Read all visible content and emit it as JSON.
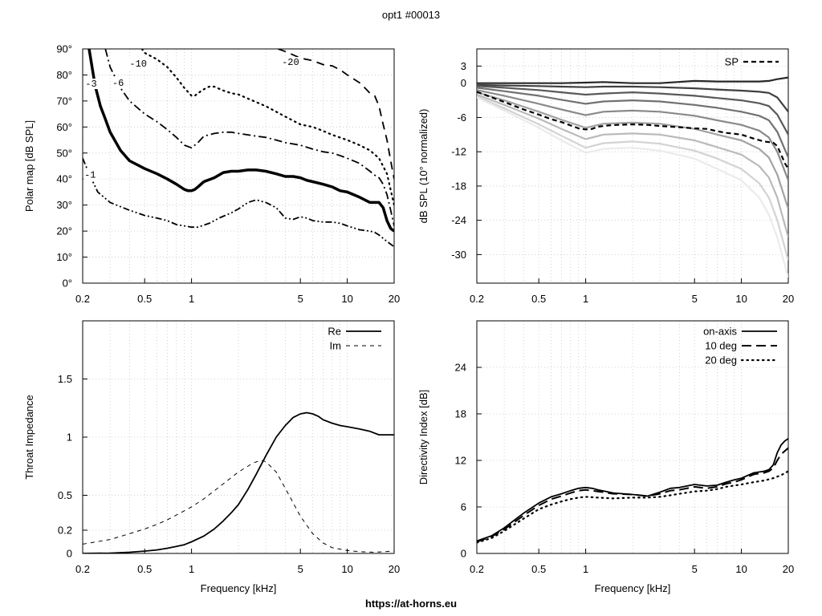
{
  "title": "opt1 #00013",
  "footer": "https://at-horns.eu",
  "chart_data": [
    {
      "id": "polar",
      "type": "line",
      "subtype": "contour",
      "ylabel": "Polar map [dB SPL]",
      "xlabel": "",
      "xscale": "log",
      "xlim": [
        0.2,
        20
      ],
      "ylim": [
        0,
        90
      ],
      "xticks": [
        0.2,
        0.5,
        1,
        5,
        10,
        20
      ],
      "xtick_labels": [
        "0.2",
        "0.5",
        "1",
        "5",
        "10",
        "20"
      ],
      "yticks": [
        0,
        10,
        20,
        30,
        40,
        50,
        60,
        70,
        80,
        90
      ],
      "ytick_labels": [
        "0°",
        "10°",
        "20°",
        "30°",
        "40°",
        "50°",
        "60°",
        "70°",
        "80°",
        "90°"
      ],
      "grid": true,
      "series": [
        {
          "name": "-1",
          "style": "dash-dot-dot",
          "color": "#000000",
          "x": [
            0.2,
            0.22,
            0.25,
            0.3,
            0.4,
            0.5,
            0.6,
            0.7,
            0.8,
            0.9,
            1.0,
            1.1,
            1.3,
            1.5,
            1.8,
            2.0,
            2.3,
            2.6,
            3.0,
            3.5,
            4.0,
            4.5,
            5.0,
            5.5,
            6.0,
            7.0,
            8.0,
            9.0,
            10,
            12,
            14,
            15,
            16,
            18,
            20
          ],
          "y": [
            48,
            42,
            35,
            31,
            28,
            26,
            25,
            24,
            22.5,
            22,
            21.5,
            21.5,
            23,
            25,
            27,
            28.5,
            31,
            32,
            31,
            29,
            25,
            24.5,
            25.5,
            25,
            24,
            23.5,
            23.5,
            23,
            22,
            20.5,
            20,
            19.5,
            18.5,
            16,
            14
          ]
        },
        {
          "name": "-3",
          "style": "thick",
          "color": "#000000",
          "x": [
            0.22,
            0.24,
            0.26,
            0.28,
            0.3,
            0.35,
            0.4,
            0.5,
            0.6,
            0.7,
            0.8,
            0.9,
            0.95,
            1.0,
            1.05,
            1.1,
            1.2,
            1.4,
            1.6,
            1.8,
            2.0,
            2.3,
            2.6,
            3.0,
            3.5,
            4.0,
            4.5,
            5.0,
            5.5,
            6.0,
            7.0,
            8.0,
            9.0,
            10,
            12,
            14,
            15,
            16,
            17,
            18,
            19,
            20
          ],
          "y": [
            90,
            76,
            68,
            63,
            58,
            51,
            47,
            44,
            42,
            40,
            38,
            36,
            35.5,
            35.5,
            36,
            37,
            39,
            40.5,
            42.5,
            43,
            43,
            43.5,
            43.5,
            43,
            42,
            41,
            41,
            40.5,
            39.5,
            39,
            38,
            37,
            35.5,
            35,
            33,
            31,
            31,
            31,
            29,
            24,
            21,
            20
          ]
        },
        {
          "name": "-6",
          "style": "dash-dot",
          "color": "#000000",
          "x": [
            0.28,
            0.3,
            0.35,
            0.4,
            0.5,
            0.6,
            0.7,
            0.8,
            0.9,
            1.0,
            1.1,
            1.2,
            1.4,
            1.6,
            1.8,
            2.0,
            2.3,
            2.6,
            3.0,
            3.5,
            4.0,
            5.0,
            6.0,
            7.0,
            8.0,
            9.0,
            10,
            12,
            14,
            15,
            16,
            17,
            18,
            19,
            20
          ],
          "y": [
            90,
            83,
            75,
            70,
            65,
            62,
            59,
            56,
            53,
            52,
            54,
            56.5,
            57.5,
            58,
            58,
            57.5,
            57,
            56.5,
            56,
            55,
            54,
            53,
            51.5,
            50.5,
            50,
            49,
            48,
            46,
            43,
            41.5,
            40.5,
            38,
            34,
            28,
            22
          ]
        },
        {
          "name": "-10",
          "style": "dotted",
          "color": "#000000",
          "x": [
            0.48,
            0.5,
            0.6,
            0.7,
            0.8,
            0.9,
            1.0,
            1.05,
            1.1,
            1.2,
            1.3,
            1.4,
            1.6,
            1.8,
            2.0,
            2.5,
            3.0,
            4.0,
            5.0,
            6.0,
            7.0,
            8.0,
            10,
            12,
            14,
            16,
            18,
            20
          ],
          "y": [
            90,
            88.5,
            86,
            83,
            79,
            75,
            72,
            72,
            73,
            74.5,
            75.5,
            75.5,
            74,
            73,
            72.5,
            70,
            68,
            64,
            61,
            60,
            58.5,
            57,
            55,
            53,
            51,
            48,
            42,
            30
          ]
        },
        {
          "name": "-20",
          "style": "dashed",
          "color": "#000000",
          "x": [
            3.6,
            4.0,
            5.0,
            6.0,
            7.0,
            8.0,
            9.0,
            10,
            12,
            13,
            14,
            15,
            16,
            17,
            18,
            19,
            20
          ],
          "y": [
            90,
            89,
            86.5,
            85.5,
            84,
            83.5,
            82,
            80,
            77,
            75,
            73,
            72,
            68,
            61,
            55,
            47,
            40
          ]
        }
      ],
      "annotations": [
        {
          "text": "-1",
          "x": 0.205,
          "y": 40.5
        },
        {
          "text": "-3",
          "x": 0.208,
          "y": 75.5
        },
        {
          "text": "-6",
          "x": 0.31,
          "y": 75.8
        },
        {
          "text": "-10",
          "x": 0.4,
          "y": 83.2
        },
        {
          "text": "-20",
          "x": 3.8,
          "y": 83.8
        }
      ]
    },
    {
      "id": "normalized",
      "type": "line",
      "xlabel": "",
      "ylabel": "dB SPL (10° normalized)",
      "xscale": "log",
      "xlim": [
        0.2,
        20
      ],
      "ylim": [
        -35,
        6
      ],
      "xticks": [
        0.2,
        0.5,
        1,
        5,
        10,
        20
      ],
      "xtick_labels": [
        "0.2",
        "0.5",
        "1",
        "5",
        "10",
        "20"
      ],
      "yticks": [
        3,
        0,
        -6,
        -12,
        -18,
        -24,
        -30
      ],
      "ytick_labels": [
        "3",
        "0",
        "-6",
        "-12",
        "-18",
        "-24",
        "-30"
      ],
      "grid": true,
      "legend_position": "top-right",
      "family": {
        "description_values": "polar responses 10°..90° in 10° steps, darker = smaller angle",
        "angles_deg": [
          10,
          20,
          30,
          40,
          50,
          60,
          70,
          80,
          90
        ],
        "x": [
          0.2,
          0.3,
          0.5,
          0.7,
          1.0,
          1.3,
          2.0,
          3.0,
          5.0,
          7.0,
          10,
          13,
          15,
          17,
          20
        ],
        "y": [
          [
            0,
            0,
            0,
            0,
            0.1,
            0.2,
            0,
            0,
            0.4,
            0.3,
            0.3,
            0.3,
            0.4,
            0.7,
            1
          ],
          [
            -0.3,
            -0.4,
            -0.5,
            -0.6,
            -0.7,
            -0.6,
            -0.6,
            -0.7,
            -0.9,
            -1.1,
            -1.3,
            -1.5,
            -1.7,
            -2.5,
            -5
          ],
          [
            -0.5,
            -0.8,
            -1.2,
            -1.6,
            -2,
            -1.8,
            -1.6,
            -1.8,
            -2.2,
            -2.6,
            -3,
            -3.5,
            -4,
            -5.5,
            -9
          ],
          [
            -0.8,
            -1.4,
            -2.2,
            -2.9,
            -3.6,
            -3.2,
            -3,
            -3.2,
            -3.8,
            -4.3,
            -5,
            -5.7,
            -6.5,
            -8.5,
            -13
          ],
          [
            -1.2,
            -2.2,
            -3.6,
            -4.6,
            -5.6,
            -5,
            -4.8,
            -5,
            -5.7,
            -6.5,
            -7.3,
            -8.3,
            -9.5,
            -12,
            -17
          ],
          [
            -1.6,
            -3,
            -5,
            -6.4,
            -7.8,
            -7.1,
            -6.9,
            -7.1,
            -8,
            -9,
            -10,
            -11.5,
            -13,
            -16,
            -22
          ],
          [
            -2,
            -3.8,
            -6.2,
            -8,
            -9.8,
            -9,
            -8.8,
            -9,
            -10,
            -11.2,
            -12.5,
            -14.5,
            -16.5,
            -20,
            -27
          ],
          [
            -2.3,
            -4.4,
            -7.2,
            -9.2,
            -11.3,
            -10.5,
            -10.2,
            -10.6,
            -11.8,
            -13.2,
            -15,
            -17.5,
            -20,
            -24,
            -31
          ],
          [
            -2.5,
            -4.8,
            -7.8,
            -10,
            -12.2,
            -11.5,
            -11.3,
            -11.8,
            -13.2,
            -15,
            -17,
            -20,
            -23,
            -27,
            -34
          ]
        ]
      },
      "series": [
        {
          "name": "SP",
          "style": "dashed-bold",
          "color": "#000000",
          "x": [
            0.2,
            0.25,
            0.3,
            0.4,
            0.5,
            0.6,
            0.7,
            0.8,
            0.9,
            1.0,
            1.1,
            1.2,
            1.4,
            1.6,
            2.0,
            2.5,
            3.0,
            4.0,
            5.0,
            6.0,
            7.0,
            8.0,
            10,
            12,
            14,
            16,
            17,
            18,
            19,
            20
          ],
          "y": [
            -1.5,
            -2.5,
            -3.3,
            -4.6,
            -5.5,
            -6.3,
            -6.8,
            -7.4,
            -7.9,
            -8.1,
            -8.0,
            -7.6,
            -7.4,
            -7.3,
            -7.2,
            -7.3,
            -7.5,
            -7.7,
            -7.9,
            -8.0,
            -8.4,
            -8.7,
            -9.0,
            -9.7,
            -10.2,
            -10.4,
            -11.0,
            -12.5,
            -14.0,
            -15.0
          ]
        }
      ]
    },
    {
      "id": "impedance",
      "type": "line",
      "xlabel": "Frequency [kHz]",
      "ylabel": "Throat Impedance",
      "xscale": "log",
      "xlim": [
        0.2,
        20
      ],
      "ylim": [
        0,
        2
      ],
      "xticks": [
        0.2,
        0.5,
        1,
        5,
        10,
        20
      ],
      "xtick_labels": [
        "0.2",
        "0.5",
        "1",
        "5",
        "10",
        "20"
      ],
      "yticks": [
        0,
        0.2,
        0.5,
        1,
        1.5
      ],
      "ytick_labels": [
        "0",
        "0.2",
        "0.5",
        "1",
        "1.5"
      ],
      "grid": true,
      "legend_position": "top-right",
      "series": [
        {
          "name": "Re",
          "style": "solid",
          "color": "#000000",
          "x": [
            0.2,
            0.3,
            0.4,
            0.5,
            0.6,
            0.7,
            0.8,
            0.9,
            1.0,
            1.2,
            1.4,
            1.6,
            1.8,
            2.0,
            2.3,
            2.6,
            3.0,
            3.5,
            4.0,
            4.5,
            5.0,
            5.5,
            6.0,
            6.5,
            7.0,
            8.0,
            9.0,
            10,
            12,
            14,
            16,
            18,
            20
          ],
          "y": [
            0,
            0.003,
            0.01,
            0.02,
            0.03,
            0.045,
            0.06,
            0.075,
            0.1,
            0.15,
            0.21,
            0.28,
            0.35,
            0.42,
            0.55,
            0.68,
            0.84,
            1.0,
            1.1,
            1.17,
            1.2,
            1.21,
            1.2,
            1.18,
            1.15,
            1.12,
            1.1,
            1.09,
            1.07,
            1.05,
            1.02,
            1.02,
            1.02
          ]
        },
        {
          "name": "Im",
          "style": "thin-dashed",
          "color": "#000000",
          "x": [
            0.2,
            0.3,
            0.4,
            0.5,
            0.6,
            0.7,
            0.8,
            1.0,
            1.2,
            1.5,
            2.0,
            2.5,
            2.8,
            3.0,
            3.5,
            4.0,
            5.0,
            6.0,
            7.0,
            8.0,
            10,
            12,
            15,
            20
          ],
          "y": [
            0.08,
            0.12,
            0.17,
            0.21,
            0.25,
            0.29,
            0.33,
            0.4,
            0.47,
            0.57,
            0.7,
            0.78,
            0.8,
            0.79,
            0.7,
            0.56,
            0.32,
            0.17,
            0.09,
            0.05,
            0.025,
            0.015,
            0.01,
            0.02
          ]
        }
      ]
    },
    {
      "id": "di",
      "type": "line",
      "xlabel": "Frequency [kHz]",
      "ylabel": "Directivity Index [dB]",
      "xscale": "log",
      "xlim": [
        0.2,
        20
      ],
      "ylim": [
        0,
        30
      ],
      "xticks": [
        0.2,
        0.5,
        1,
        5,
        10,
        20
      ],
      "xtick_labels": [
        "0.2",
        "0.5",
        "1",
        "5",
        "10",
        "20"
      ],
      "yticks": [
        0,
        6,
        12,
        18,
        24
      ],
      "ytick_labels": [
        "0",
        "6",
        "12",
        "18",
        "24"
      ],
      "grid": true,
      "legend_position": "top-right",
      "series": [
        {
          "name": "on-axis",
          "style": "solid",
          "color": "#000000",
          "x": [
            0.2,
            0.25,
            0.3,
            0.4,
            0.5,
            0.6,
            0.7,
            0.8,
            0.9,
            1.0,
            1.1,
            1.2,
            1.5,
            2.0,
            2.5,
            3.0,
            3.5,
            4.0,
            5.0,
            6.0,
            7.0,
            8.0,
            9.0,
            10,
            12,
            14,
            15,
            16,
            17,
            18,
            19,
            20
          ],
          "y": [
            1.6,
            2.3,
            3.3,
            5.2,
            6.5,
            7.3,
            7.7,
            8.1,
            8.4,
            8.5,
            8.4,
            8.2,
            7.8,
            7.6,
            7.4,
            7.9,
            8.4,
            8.5,
            8.9,
            8.7,
            8.8,
            9.2,
            9.5,
            9.7,
            10.4,
            10.6,
            10.8,
            11.4,
            13,
            14,
            14.5,
            14.8
          ]
        },
        {
          "name": "10 deg",
          "style": "long-dashed",
          "color": "#000000",
          "x": [
            0.2,
            0.25,
            0.3,
            0.4,
            0.5,
            0.6,
            0.7,
            0.8,
            0.9,
            1.0,
            1.2,
            1.5,
            2.0,
            2.5,
            3.0,
            3.5,
            4.0,
            5.0,
            6.0,
            7.0,
            8.0,
            9.0,
            10,
            12,
            14,
            15,
            16,
            17,
            18,
            20
          ],
          "y": [
            1.5,
            2.2,
            3.1,
            4.9,
            6.2,
            7.0,
            7.4,
            7.8,
            8.1,
            8.2,
            8.0,
            7.7,
            7.6,
            7.4,
            7.7,
            8.1,
            8.2,
            8.6,
            8.4,
            8.6,
            9.0,
            9.2,
            9.5,
            10.2,
            10.4,
            10.6,
            11.0,
            12.0,
            12.8,
            13.6
          ]
        },
        {
          "name": "20 deg",
          "style": "dotted",
          "color": "#000000",
          "x": [
            0.2,
            0.25,
            0.3,
            0.4,
            0.5,
            0.6,
            0.7,
            0.8,
            0.9,
            1.0,
            1.2,
            1.5,
            2.0,
            2.5,
            3.0,
            3.5,
            4.0,
            5.0,
            6.0,
            7.0,
            8.0,
            10,
            12,
            14,
            16,
            18,
            20
          ],
          "y": [
            1.4,
            2.0,
            2.9,
            4.5,
            5.7,
            6.3,
            6.7,
            7.0,
            7.2,
            7.3,
            7.2,
            7.1,
            7.2,
            7.2,
            7.3,
            7.5,
            7.7,
            8.0,
            8.1,
            8.3,
            8.6,
            8.9,
            9.2,
            9.4,
            9.7,
            10.1,
            10.6
          ]
        }
      ]
    }
  ]
}
